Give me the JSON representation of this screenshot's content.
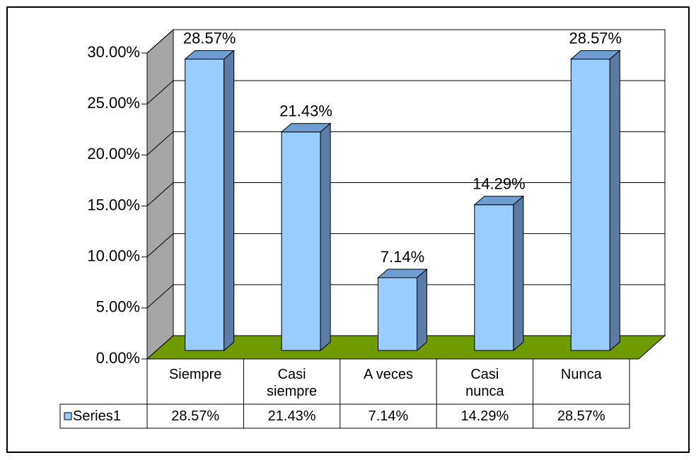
{
  "chart_data": {
    "type": "bar3d",
    "categories": [
      "Siempre",
      "Casi siempre",
      "A veces",
      "Casi nunca",
      "Nunca"
    ],
    "series": [
      {
        "name": "Series1",
        "color": "#99ccff",
        "values": [
          28.57,
          21.43,
          7.14,
          14.29,
          28.57
        ],
        "value_labels": [
          "28.57%",
          "21.43%",
          "7.14%",
          "14.29%",
          "28.57%"
        ]
      }
    ],
    "ylim": [
      0,
      30
    ],
    "yticks": [
      {
        "value": 0,
        "label": "0.00%"
      },
      {
        "value": 5,
        "label": "5.00%"
      },
      {
        "value": 10,
        "label": "10.00%"
      },
      {
        "value": 15,
        "label": "15.00%"
      },
      {
        "value": 20,
        "label": "20.00%"
      },
      {
        "value": 25,
        "label": "25.00%"
      },
      {
        "value": 30,
        "label": "30.00%"
      }
    ],
    "grid": true,
    "data_table": true
  }
}
